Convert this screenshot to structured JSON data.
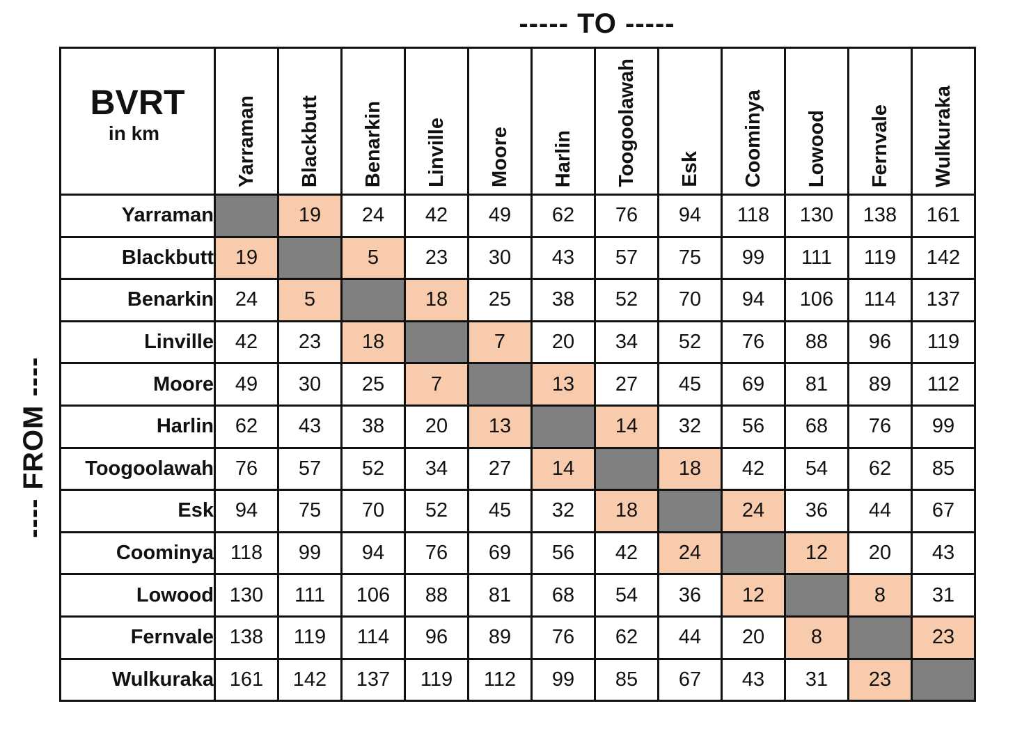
{
  "labels": {
    "to": "----- TO -----",
    "from": "---- FROM ----",
    "corner_title": "BVRT",
    "corner_subtitle": "in km"
  },
  "colors": {
    "diagonal": "#808080",
    "adjacent": "#f8cbad",
    "border": "#111111"
  },
  "towns": [
    "Yarraman",
    "Blackbutt",
    "Benarkin",
    "Linville",
    "Moore",
    "Harlin",
    "Toogoolawah",
    "Esk",
    "Coominya",
    "Lowood",
    "Fernvale",
    "Wulkuraka"
  ],
  "distances": [
    [
      null,
      19,
      24,
      42,
      49,
      62,
      76,
      94,
      118,
      130,
      138,
      161
    ],
    [
      19,
      null,
      5,
      23,
      30,
      43,
      57,
      75,
      99,
      111,
      119,
      142
    ],
    [
      24,
      5,
      null,
      18,
      25,
      38,
      52,
      70,
      94,
      106,
      114,
      137
    ],
    [
      42,
      23,
      18,
      null,
      7,
      20,
      34,
      52,
      76,
      88,
      96,
      119
    ],
    [
      49,
      30,
      25,
      7,
      null,
      13,
      27,
      45,
      69,
      81,
      89,
      112
    ],
    [
      62,
      43,
      38,
      20,
      13,
      null,
      14,
      32,
      56,
      68,
      76,
      99
    ],
    [
      76,
      57,
      52,
      34,
      27,
      14,
      null,
      18,
      42,
      54,
      62,
      85
    ],
    [
      94,
      75,
      70,
      52,
      45,
      32,
      18,
      null,
      24,
      36,
      44,
      67
    ],
    [
      118,
      99,
      94,
      76,
      69,
      56,
      42,
      24,
      null,
      12,
      20,
      43
    ],
    [
      130,
      111,
      106,
      88,
      81,
      68,
      54,
      36,
      12,
      null,
      8,
      31
    ],
    [
      138,
      119,
      114,
      96,
      89,
      76,
      62,
      44,
      20,
      8,
      null,
      23
    ],
    [
      161,
      142,
      137,
      119,
      112,
      99,
      85,
      67,
      43,
      31,
      23,
      null
    ]
  ]
}
